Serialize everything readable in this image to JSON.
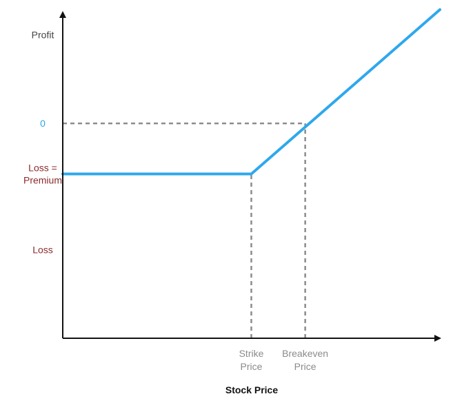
{
  "chart_data": {
    "type": "line",
    "title": "",
    "xlabel": "Stock Price",
    "ylabel": "",
    "grid": false,
    "legend": "none",
    "y_ticks": [
      {
        "label": "Profit",
        "value": 35,
        "color": "#444444"
      },
      {
        "label": "0",
        "value": 0,
        "color": "#29a8e0"
      },
      {
        "label": "Loss =\nPremium",
        "value": -20,
        "color": "#8b2a2a"
      },
      {
        "label": "Loss",
        "value": -50,
        "color": "#8b2a2a"
      }
    ],
    "x_ticks": [
      {
        "label": "Strike\nPrice",
        "value": 70
      },
      {
        "label": "Breakeven\nPrice",
        "value": 90
      }
    ],
    "xlim": [
      0,
      140
    ],
    "ylim": [
      -85,
      45
    ],
    "tick_label_color": "#8a8a8a",
    "series": [
      {
        "color": "#2ea8ec",
        "x": [
          0,
          70,
          140
        ],
        "y": [
          -20,
          -20,
          45
        ]
      }
    ],
    "reference_lines": [
      {
        "type": "vertical",
        "x": 70,
        "from_y": -85,
        "to_y": -20
      },
      {
        "type": "vertical",
        "x": 90,
        "from_y": -85,
        "to_y": 0
      },
      {
        "type": "horizontal",
        "y": 0,
        "from_x": 0,
        "to_x": 90
      }
    ]
  }
}
